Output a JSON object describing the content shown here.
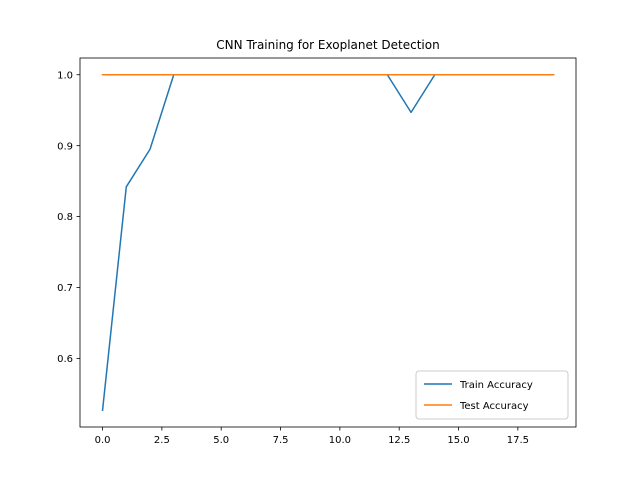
{
  "chart_data": {
    "type": "line",
    "title": "CNN Training for Exoplanet Detection",
    "xlabel": "",
    "ylabel": "",
    "x": [
      0,
      1,
      2,
      3,
      4,
      5,
      6,
      7,
      8,
      9,
      10,
      11,
      12,
      13,
      14,
      15,
      16,
      17,
      18,
      19
    ],
    "series": [
      {
        "name": "Train Accuracy",
        "color": "#1f77b4",
        "values": [
          0.527,
          0.842,
          0.895,
          1.0,
          1.0,
          1.0,
          1.0,
          1.0,
          1.0,
          1.0,
          1.0,
          1.0,
          1.0,
          0.947,
          1.0,
          1.0,
          1.0,
          1.0,
          1.0,
          1.0
        ]
      },
      {
        "name": "Test Accuracy",
        "color": "#ff7f0e",
        "values": [
          1.0,
          1.0,
          1.0,
          1.0,
          1.0,
          1.0,
          1.0,
          1.0,
          1.0,
          1.0,
          1.0,
          1.0,
          1.0,
          1.0,
          1.0,
          1.0,
          1.0,
          1.0,
          1.0,
          1.0
        ]
      }
    ],
    "xlim": [
      -0.95,
      19.95
    ],
    "ylim": [
      0.5034,
      1.0236
    ],
    "xticks": [
      0,
      2.5,
      5,
      7.5,
      10,
      12.5,
      15,
      17.5
    ],
    "xtick_labels": [
      "0.0",
      "2.5",
      "5.0",
      "7.5",
      "10.0",
      "12.5",
      "15.0",
      "17.5"
    ],
    "yticks": [
      0.6,
      0.7,
      0.8,
      0.9,
      1.0
    ],
    "ytick_labels": [
      "0.6",
      "0.7",
      "0.8",
      "0.9",
      "1.0"
    ],
    "grid": false,
    "legend_position": "lower-right"
  }
}
